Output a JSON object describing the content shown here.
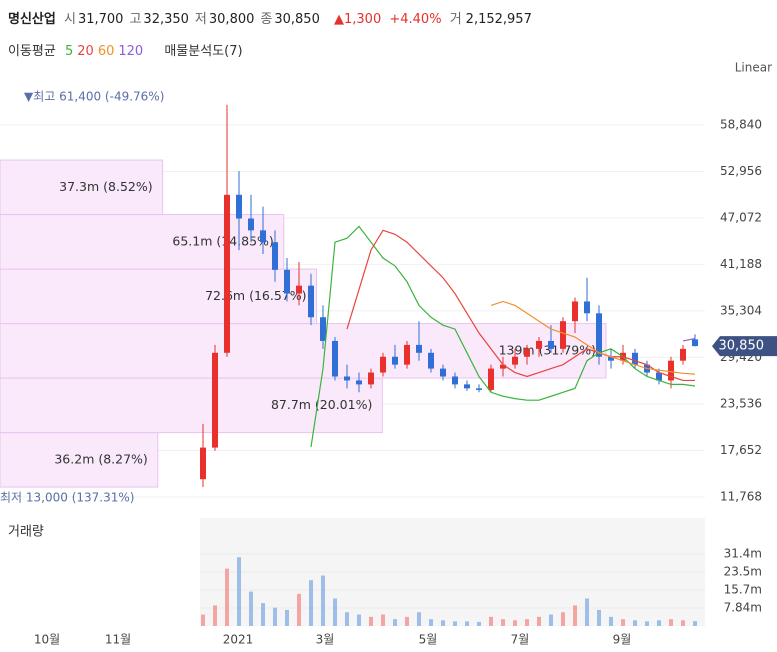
{
  "header": {
    "name": "명신산업",
    "fields": [
      {
        "label": "시",
        "value": "31,700"
      },
      {
        "label": "고",
        "value": "32,350"
      },
      {
        "label": "저",
        "value": "30,800"
      },
      {
        "label": "종",
        "value": "30,850"
      }
    ],
    "change": "▲1,300",
    "change_pct": "+4.40%",
    "volume_label": "거",
    "volume": "2,152,957"
  },
  "legend": {
    "ma_title": "이동평균",
    "profile_title": "매물분석도(7)",
    "scale": "Linear"
  },
  "chart_data": {
    "type": "candlestick",
    "open": [
      14000,
      18000,
      30000,
      50000,
      47000,
      45500,
      44000,
      40500,
      37500,
      38500,
      34500,
      31500,
      27000,
      26500,
      26000,
      27500,
      29500,
      28500,
      31000,
      30000,
      28000,
      27000,
      26000,
      25500,
      25300,
      28000,
      28500,
      29500,
      30500,
      31500,
      30500,
      34000,
      36500,
      35000,
      29500,
      29000,
      30000,
      28500,
      27500,
      26500,
      29000,
      31700
    ],
    "high": [
      21000,
      31000,
      61400,
      53000,
      50000,
      48500,
      45500,
      42000,
      41500,
      40000,
      36000,
      32000,
      28500,
      27500,
      28000,
      30000,
      31000,
      31500,
      34000,
      30500,
      28500,
      27500,
      26500,
      26000,
      28500,
      29500,
      30500,
      31000,
      32000,
      33500,
      34500,
      37000,
      39500,
      36000,
      30500,
      31000,
      30500,
      29000,
      28000,
      29500,
      31000,
      32350
    ],
    "low": [
      13000,
      17600,
      29500,
      43000,
      44000,
      42500,
      39000,
      36500,
      36000,
      33500,
      30500,
      26500,
      25500,
      25000,
      25500,
      27000,
      28000,
      28000,
      29000,
      27500,
      26500,
      25500,
      25200,
      25000,
      25000,
      27000,
      28000,
      28500,
      29500,
      30000,
      30000,
      32500,
      34000,
      28500,
      28000,
      28500,
      28000,
      27000,
      26000,
      25500,
      28500,
      30800
    ],
    "close": [
      18000,
      30000,
      50000,
      47000,
      45500,
      44000,
      40500,
      37500,
      38500,
      34500,
      31500,
      27000,
      26500,
      26000,
      27500,
      29500,
      28500,
      31000,
      30000,
      28000,
      27000,
      26000,
      25500,
      25300,
      28000,
      28500,
      29500,
      30500,
      31500,
      30500,
      34000,
      36500,
      35000,
      29500,
      29000,
      30000,
      28500,
      27500,
      26500,
      29000,
      30500,
      30850
    ],
    "volume": [
      5000000,
      9000000,
      25000000,
      30000000,
      15000000,
      10000000,
      8000000,
      7000000,
      14000000,
      20000000,
      22000000,
      12000000,
      6000000,
      5000000,
      4000000,
      5000000,
      3000000,
      4000000,
      6000000,
      3000000,
      2500000,
      2000000,
      2000000,
      1800000,
      4000000,
      3000000,
      2500000,
      3000000,
      4000000,
      5000000,
      6000000,
      9000000,
      12000000,
      7000000,
      4000000,
      3000000,
      2500000,
      2000000,
      2500000,
      3000000,
      2500000,
      2152957
    ],
    "series": [
      {
        "name": "5",
        "color": "#3cb43c",
        "values": [
          null,
          null,
          null,
          null,
          null,
          null,
          null,
          null,
          null,
          18075,
          28000,
          44000,
          44500,
          46000,
          44000,
          42000,
          41000,
          39000,
          36000,
          34500,
          33500,
          33000,
          30000,
          27000,
          25000,
          24500,
          24200,
          24000,
          24000,
          24500,
          25000,
          25500,
          29000,
          30000,
          30500,
          29500,
          28000,
          27000,
          26500,
          26000,
          26000,
          25800
        ]
      },
      {
        "name": "20",
        "color": "#e8453c",
        "values": [
          null,
          null,
          null,
          null,
          null,
          null,
          null,
          null,
          null,
          null,
          null,
          null,
          33000,
          38000,
          43000,
          45500,
          45000,
          44000,
          42500,
          41000,
          39500,
          37500,
          35000,
          32500,
          30500,
          28500,
          27500,
          27000,
          27500,
          28000,
          28500,
          29500,
          30500,
          30000,
          29500,
          29500,
          29000,
          28500,
          27500,
          27000,
          26500,
          26500
        ]
      },
      {
        "name": "60",
        "color": "#f0902c",
        "values": [
          null,
          null,
          null,
          null,
          null,
          null,
          null,
          null,
          null,
          null,
          null,
          null,
          null,
          null,
          null,
          null,
          null,
          null,
          null,
          null,
          null,
          null,
          null,
          null,
          36000,
          36500,
          36000,
          35000,
          34000,
          33000,
          32500,
          32000,
          31000,
          30000,
          29500,
          29000,
          28500,
          28000,
          27800,
          27600,
          27400,
          27300
        ]
      },
      {
        "name": "120",
        "color": "#8a5ce0",
        "values": [
          null,
          null,
          null,
          null,
          null,
          null,
          null,
          null,
          null,
          null,
          null,
          null,
          null,
          null,
          null,
          null,
          null,
          null,
          null,
          null,
          null,
          null,
          null,
          null,
          null,
          null,
          null,
          null,
          null,
          null,
          null,
          null,
          null,
          null,
          null,
          null,
          null,
          null,
          null,
          null,
          31500,
          31800
        ]
      }
    ],
    "profile": {
      "bins": [
        13000,
        19900,
        26800,
        33700,
        40600,
        47500,
        54400
      ],
      "values": [
        36200000,
        87700000,
        139000000,
        72600000,
        65100000,
        37300000
      ],
      "value_labels": [
        "36.2m (8.27%)",
        "87.7m (20.01%)",
        "139m (31.79%)",
        "72.6m (16.57%)",
        "65.1m (14.85%)",
        "37.3m (8.52%)"
      ]
    },
    "ylim": [
      10100,
      63900
    ],
    "yticks": [
      {
        "value": 58840,
        "label": "58,840"
      },
      {
        "value": 52956,
        "label": "52,956"
      },
      {
        "value": 47072,
        "label": "47,072"
      },
      {
        "value": 41188,
        "label": "41,188"
      },
      {
        "value": 35304,
        "label": "35,304"
      },
      {
        "value": 29420,
        "label": "29,420"
      },
      {
        "value": 23536,
        "label": "23,536"
      },
      {
        "value": 17652,
        "label": "17,652"
      },
      {
        "value": 11768,
        "label": "11,768"
      }
    ],
    "vlim": [
      0,
      47100000
    ],
    "vticks": [
      {
        "value": 31400000,
        "label": "31.4m"
      },
      {
        "value": 23500000,
        "label": "23.5m"
      },
      {
        "value": 15700000,
        "label": "15.7m"
      },
      {
        "value": 7840000,
        "label": "7.84m"
      }
    ],
    "volume_title": "거래량",
    "xticks": [
      "10월",
      "11월",
      "2021",
      "3월",
      "5월",
      "7월",
      "9월"
    ],
    "current_price": {
      "value": 30850,
      "label": "30,850"
    },
    "max_note": "▼최고 61,400 (-49.76%)",
    "min_note": "최저 13,000 (137.31%)"
  }
}
